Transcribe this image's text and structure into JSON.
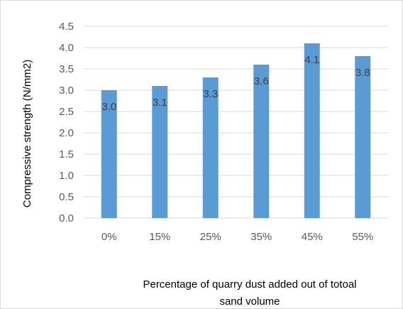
{
  "chart_data": {
    "type": "bar",
    "categories": [
      "0%",
      "15%",
      "25%",
      "35%",
      "45%",
      "55%"
    ],
    "values": [
      3.0,
      3.1,
      3.3,
      3.6,
      4.1,
      3.8
    ],
    "data_labels": [
      "3.0",
      "3.1",
      "3.3",
      "3.6",
      "4.1",
      "3.8"
    ],
    "y_ticks": [
      "0.0",
      "0.5",
      "1.0",
      "1.5",
      "2.0",
      "2.5",
      "3.0",
      "3.5",
      "4.0",
      "4.5"
    ],
    "ylim": [
      0,
      4.5
    ],
    "ylabel": "Compressive strength (N/mm2)",
    "xlabel_line1": "Percentage of quarry dust added out of totoal",
    "xlabel_line2": "sand volume",
    "grid": true,
    "bar_color": "#5b9bd5",
    "grid_color": "#d9d9d9"
  }
}
